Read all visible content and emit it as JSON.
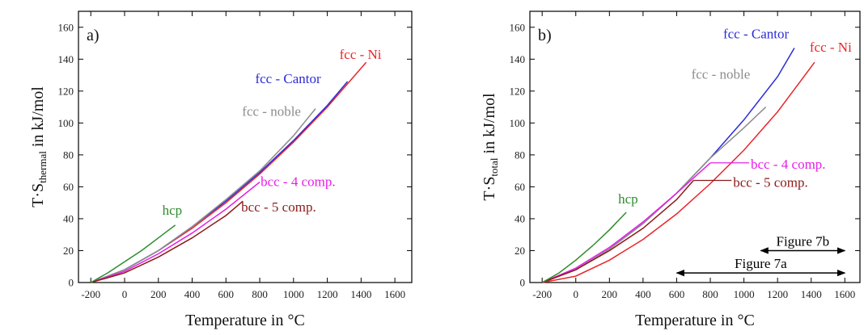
{
  "chart_data": [
    {
      "type": "line",
      "panel_label": "a)",
      "xlabel": "Temperature in °C",
      "ylabel": {
        "main": "T·S",
        "sub": "thermal",
        "rest": " in kJ/mol"
      },
      "xlim": [
        -273,
        1700
      ],
      "ylim": [
        0,
        170
      ],
      "xticks": [
        -200,
        0,
        200,
        400,
        600,
        800,
        1000,
        1200,
        1400,
        1600
      ],
      "yticks": [
        0,
        20,
        40,
        60,
        80,
        100,
        120,
        140,
        160
      ],
      "series": [
        {
          "name": "fcc - Ni",
          "color": "#e8262a",
          "x": [
            -200,
            0,
            200,
            400,
            600,
            800,
            1000,
            1200,
            1430
          ],
          "values": [
            0,
            8,
            20,
            34,
            50,
            68,
            88,
            110,
            138
          ]
        },
        {
          "name": "fcc - Cantor",
          "color": "#2b2bd9",
          "x": [
            -200,
            0,
            200,
            400,
            600,
            800,
            1000,
            1200,
            1320
          ],
          "values": [
            0,
            8,
            20,
            35,
            51,
            69,
            89,
            111,
            126
          ]
        },
        {
          "name": "fcc - noble",
          "color": "#8c8c8c",
          "x": [
            -200,
            0,
            200,
            400,
            600,
            800,
            1000,
            1130
          ],
          "values": [
            0,
            8,
            20,
            35,
            52,
            70,
            92,
            109
          ]
        },
        {
          "name": "bcc - 4 comp.",
          "color": "#e61ee6",
          "x": [
            -200,
            0,
            200,
            400,
            600,
            800
          ],
          "values": [
            0,
            7,
            18,
            31,
            46,
            63
          ]
        },
        {
          "name": "bcc - 5 comp.",
          "color": "#8b1a1a",
          "x": [
            -200,
            0,
            200,
            400,
            600,
            700
          ],
          "values": [
            0,
            6,
            16,
            28,
            42,
            51
          ]
        },
        {
          "name": "hcp",
          "color": "#2e8b2e",
          "x": [
            -200,
            -100,
            0,
            100,
            200,
            300
          ],
          "values": [
            0,
            6,
            13,
            20,
            28,
            36
          ]
        }
      ]
    },
    {
      "type": "line",
      "panel_label": "b)",
      "xlabel": "Temperature in °C",
      "ylabel": {
        "main": "T·S",
        "sub": "total",
        "rest": " in kJ/mol"
      },
      "xlim": [
        -273,
        1690
      ],
      "ylim": [
        0,
        170
      ],
      "xticks": [
        -200,
        0,
        200,
        400,
        600,
        800,
        1000,
        1200,
        1400,
        1600
      ],
      "yticks": [
        0,
        20,
        40,
        60,
        80,
        100,
        120,
        140,
        160
      ],
      "series": [
        {
          "name": "fcc - Ni",
          "color": "#e8262a",
          "x": [
            -200,
            0,
            200,
            400,
            600,
            800,
            1000,
            1200,
            1420
          ],
          "values": [
            0,
            4,
            14,
            27,
            43,
            62,
            83,
            107,
            138
          ]
        },
        {
          "name": "fcc - Cantor",
          "color": "#2b2bd9",
          "x": [
            -200,
            0,
            200,
            400,
            600,
            800,
            1000,
            1200,
            1300
          ],
          "values": [
            0,
            8,
            21,
            37,
            56,
            78,
            102,
            129,
            147
          ]
        },
        {
          "name": "fcc - noble",
          "color": "#8c8c8c",
          "x": [
            -200,
            0,
            200,
            400,
            600,
            800,
            1000,
            1130
          ],
          "values": [
            0,
            8,
            21,
            37,
            56,
            78,
            97,
            110
          ]
        },
        {
          "name": "bcc - 4 comp.",
          "color": "#e61ee6",
          "x": [
            -200,
            0,
            200,
            400,
            600,
            800
          ],
          "values": [
            0,
            9,
            22,
            38,
            56,
            75
          ]
        },
        {
          "name": "bcc - 5 comp.",
          "color": "#8b1a1a",
          "x": [
            -200,
            0,
            200,
            400,
            600,
            700
          ],
          "values": [
            0,
            8,
            20,
            34,
            52,
            64
          ]
        },
        {
          "name": "hcp",
          "color": "#2e8b2e",
          "x": [
            -200,
            -100,
            0,
            100,
            200,
            300
          ],
          "values": [
            0,
            6,
            14,
            23,
            33,
            44
          ]
        }
      ],
      "ranges": [
        {
          "label": "Figure 7b",
          "x": [
            1100,
            1600
          ],
          "y": 20
        },
        {
          "label": "Figure 7a",
          "x": [
            600,
            1600
          ],
          "y": 6
        }
      ]
    }
  ]
}
